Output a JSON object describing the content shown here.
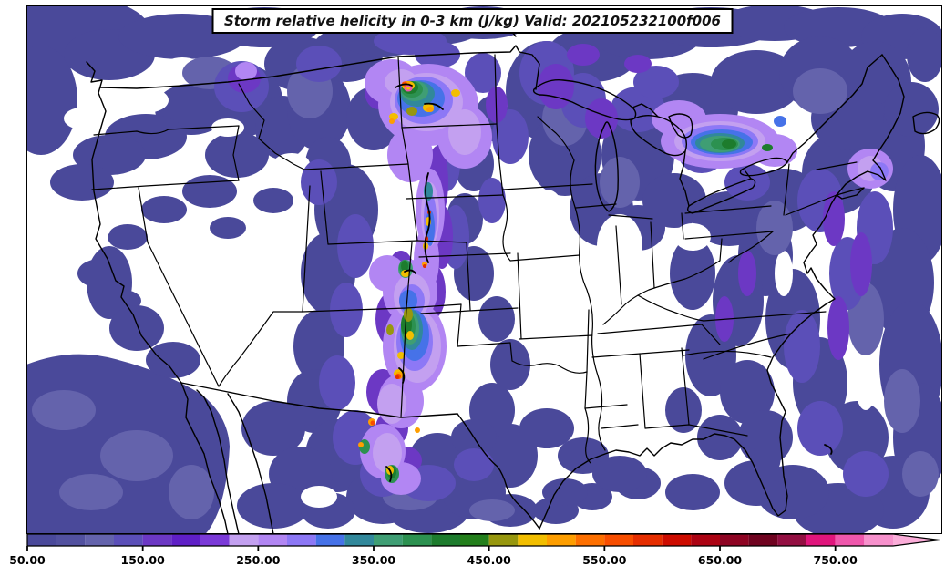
{
  "title": "Storm relative helicity in 0-3 km (J/kg) Valid: 202105232100f006",
  "variable": "Storm relative helicity in 0-3 km",
  "units": "J/kg",
  "valid_stamp": "202105232100f006",
  "colorbar": {
    "min_value": 50,
    "segment_step": 25,
    "max_solid_value": 800,
    "tick_labels": [
      "50.00",
      "150.00",
      "250.00",
      "350.00",
      "450.00",
      "550.00",
      "650.00",
      "750.00"
    ],
    "tick_values": [
      50,
      150,
      250,
      350,
      450,
      550,
      650,
      750
    ],
    "segment_colors": [
      "#4a499a",
      "#52519f",
      "#6463ac",
      "#5b4fb8",
      "#6c38c4",
      "#5f1fc6",
      "#7b3ad8",
      "#c3a0f0",
      "#b286f3",
      "#8d78f6",
      "#4672e8",
      "#31889b",
      "#3f9e74",
      "#2c9150",
      "#1d7c2d",
      "#237f1c",
      "#97970e",
      "#f2be00",
      "#fe9e00",
      "#fd6f00",
      "#f84e00",
      "#e62e00",
      "#cd0c00",
      "#ac0313",
      "#8e0423",
      "#6f0320",
      "#930f42",
      "#e0157c",
      "#ef57ac",
      "#f791cc"
    ],
    "arrow_color": "#fbadd9"
  },
  "chart_data": {
    "type": "heatmap",
    "subtype": "filled-contour-weather-map",
    "region": "Continental United States with state borders, Great Lakes, adjacent Canada and Mexico",
    "title": "Storm relative helicity in 0-3 km (J/kg) Valid: 202105232100f006",
    "scale_levels": [
      50,
      75,
      100,
      125,
      150,
      175,
      200,
      225,
      250,
      275,
      300,
      325,
      350,
      375,
      400,
      425,
      450,
      475,
      500,
      525,
      550,
      575,
      600,
      625,
      650,
      675,
      700,
      725,
      750,
      775,
      800
    ],
    "scale_units": "J/kg",
    "notable_maxima": [
      {
        "area": "Montana / North Dakota border",
        "approx_peak": "650-775"
      },
      {
        "area": "Wyoming-Nebraska front range band",
        "approx_peak": "500-600"
      },
      {
        "area": "Colorado / New Mexico",
        "approx_peak": "550-625"
      },
      {
        "area": "South Texas",
        "approx_peak": "500-550"
      },
      {
        "area": "Southern Ontario / Lake Huron",
        "approx_peak": "400-425"
      }
    ],
    "background_threshold": "values below 50 J/kg shown white"
  }
}
